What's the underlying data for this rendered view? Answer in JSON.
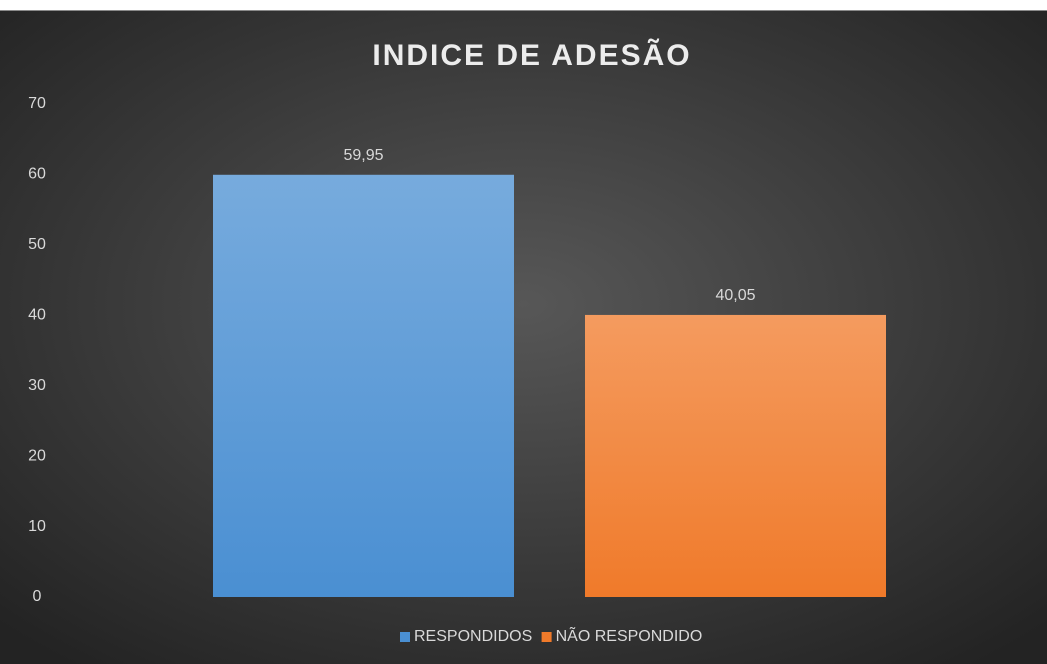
{
  "chart_data": {
    "type": "bar",
    "title": "INDICE DE ADESÃO",
    "categories": [
      null
    ],
    "series": [
      {
        "name": "RESPONDIDOS",
        "color": "#4a8fd2",
        "values": [
          59.95
        ],
        "value_labels": [
          "59,95"
        ]
      },
      {
        "name": "NÃO RESPONDIDO",
        "color": "#f07a2a",
        "values": [
          40.05
        ],
        "value_labels": [
          "40,05"
        ]
      }
    ],
    "ylim": [
      0,
      70
    ],
    "yticks": [
      0,
      10,
      20,
      30,
      40,
      50,
      60,
      70
    ],
    "grid": false,
    "legend": "bottom"
  }
}
